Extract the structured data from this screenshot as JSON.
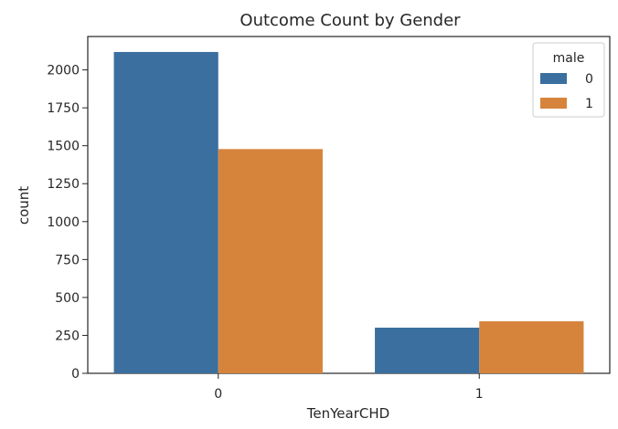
{
  "chart_data": {
    "type": "bar",
    "title": "Outcome Count by Gender",
    "xlabel": "TenYearCHD",
    "ylabel": "count",
    "categories": [
      "0",
      "1"
    ],
    "series": [
      {
        "name": "0",
        "values": [
          2118,
          301
        ],
        "color": "#3a6f9f"
      },
      {
        "name": "1",
        "values": [
          1478,
          343
        ],
        "color": "#d6843c"
      }
    ],
    "ylim": [
      0,
      2220
    ],
    "yticks": [
      0,
      250,
      500,
      750,
      1000,
      1250,
      1500,
      1750,
      2000
    ],
    "grid": false,
    "legend": {
      "title": "male",
      "placement": "top-right"
    }
  }
}
